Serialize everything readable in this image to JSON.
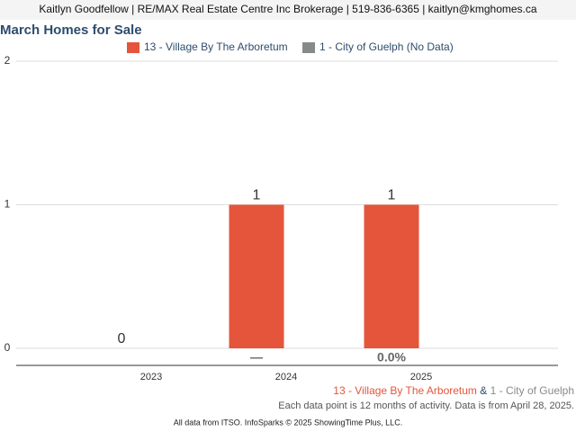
{
  "header": "Kaitlyn Goodfellow | RE/MAX Real Estate Centre Inc Brokerage | 519-836-6365 | kaitlyn@kmghomes.ca",
  "chart_data": {
    "type": "bar",
    "title": "March Homes for Sale",
    "categories": [
      "2023",
      "2024",
      "2025"
    ],
    "series": [
      {
        "name": "13 - Village By The Arboretum",
        "color": "#e4553b",
        "values": [
          0,
          1,
          1
        ]
      },
      {
        "name": "1 - City of Guelph (No Data)",
        "color": "#878b88",
        "values": [
          null,
          null,
          null
        ]
      }
    ],
    "change_labels": [
      null,
      "—",
      "0.0%"
    ],
    "ylim": [
      0,
      2
    ],
    "yticks": [
      0,
      1,
      2
    ],
    "grid": true
  },
  "footer": {
    "areas": [
      "13 - Village By The Arboretum",
      "&",
      "1 - City of Guelph"
    ],
    "note": "Each data point is 12 months of activity. Data is from April 28, 2025.",
    "source": "All data from ITSO. InfoSparks © 2025 ShowingTime Plus, LLC."
  }
}
